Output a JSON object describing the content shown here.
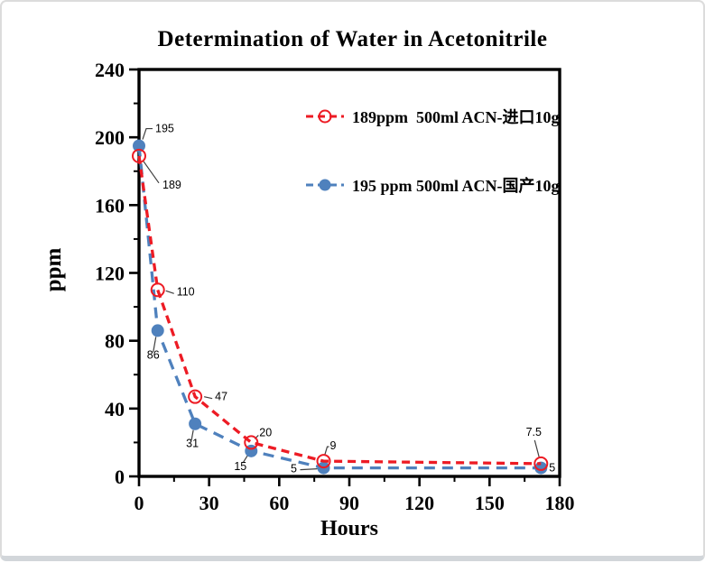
{
  "window": {
    "background": "#ffffff",
    "card_border_color": "#dcdcdc",
    "card_border_bottom_color": "#d2d6da"
  },
  "chart_data": {
    "type": "line",
    "title": "Determination of Water in Acetonitrile",
    "xlabel": "Hours",
    "ylabel": "ppm",
    "xlim": [
      0,
      180
    ],
    "ylim": [
      0,
      240
    ],
    "x_major_ticks": [
      0,
      30,
      60,
      90,
      120,
      150,
      180
    ],
    "x_minor_step": 15,
    "y_major_ticks": [
      0,
      40,
      80,
      120,
      160,
      200,
      240
    ],
    "y_minor_step": 20,
    "grid": false,
    "legend_position": "inside-top-right",
    "frame_color": "#000000",
    "series": [
      {
        "name": "189ppm  500ml ACN-进口10g",
        "color": "#ed1b24",
        "marker": "open-circle",
        "line_style": "dashed",
        "x": [
          0,
          8,
          24,
          48,
          79,
          172
        ],
        "y": [
          189,
          110,
          47,
          20,
          9,
          7.5
        ],
        "point_labels": [
          "189",
          "110",
          "47",
          "20",
          "9",
          "7.5"
        ]
      },
      {
        "name": "195 ppm 500ml ACN-国产10g",
        "color": "#4f81bd",
        "marker": "filled-circle",
        "line_style": "dashed",
        "x": [
          0,
          8,
          24,
          48,
          79,
          172
        ],
        "y": [
          195,
          86,
          31,
          15,
          5,
          5
        ],
        "point_labels": [
          "195",
          "86",
          "31",
          "15",
          "5",
          "5"
        ]
      }
    ]
  }
}
